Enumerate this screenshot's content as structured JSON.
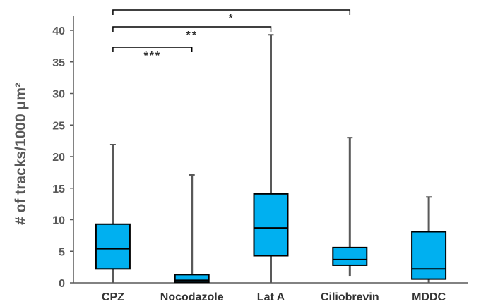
{
  "chart_data": {
    "type": "box",
    "ylabel": "# of tracks/1000 μm²",
    "ylim": [
      0,
      40
    ],
    "yticks": [
      0,
      5,
      10,
      15,
      20,
      25,
      30,
      35,
      40
    ],
    "grid": false,
    "box_color": "#00B0F0",
    "whisker_color": "#595959",
    "categories": [
      "CPZ",
      "Nocodazole",
      "Lat A",
      "Ciliobrevin",
      "MDDC"
    ],
    "boxes": [
      {
        "category": "CPZ",
        "min": 0,
        "q1": 2.2,
        "median": 5.4,
        "q3": 9.3,
        "max": 21.9
      },
      {
        "category": "Nocodazole",
        "min": 0,
        "q1": 0.1,
        "median": 0.4,
        "q3": 1.3,
        "max": 17.1
      },
      {
        "category": "Lat A",
        "min": 0,
        "q1": 4.3,
        "median": 8.7,
        "q3": 14.1,
        "max": 39.3
      },
      {
        "category": "Ciliobrevin",
        "min": 1.0,
        "q1": 2.8,
        "median": 3.7,
        "q3": 5.6,
        "max": 23.0
      },
      {
        "category": "MDDC",
        "min": 0,
        "q1": 0.6,
        "median": 2.2,
        "q3": 8.1,
        "max": 13.6
      }
    ],
    "significance": [
      {
        "from": "CPZ",
        "to": "Nocodazole",
        "label": "***"
      },
      {
        "from": "CPZ",
        "to": "Lat A",
        "label": "**"
      },
      {
        "from": "CPZ",
        "to": "Ciliobrevin",
        "label": "*"
      }
    ]
  }
}
